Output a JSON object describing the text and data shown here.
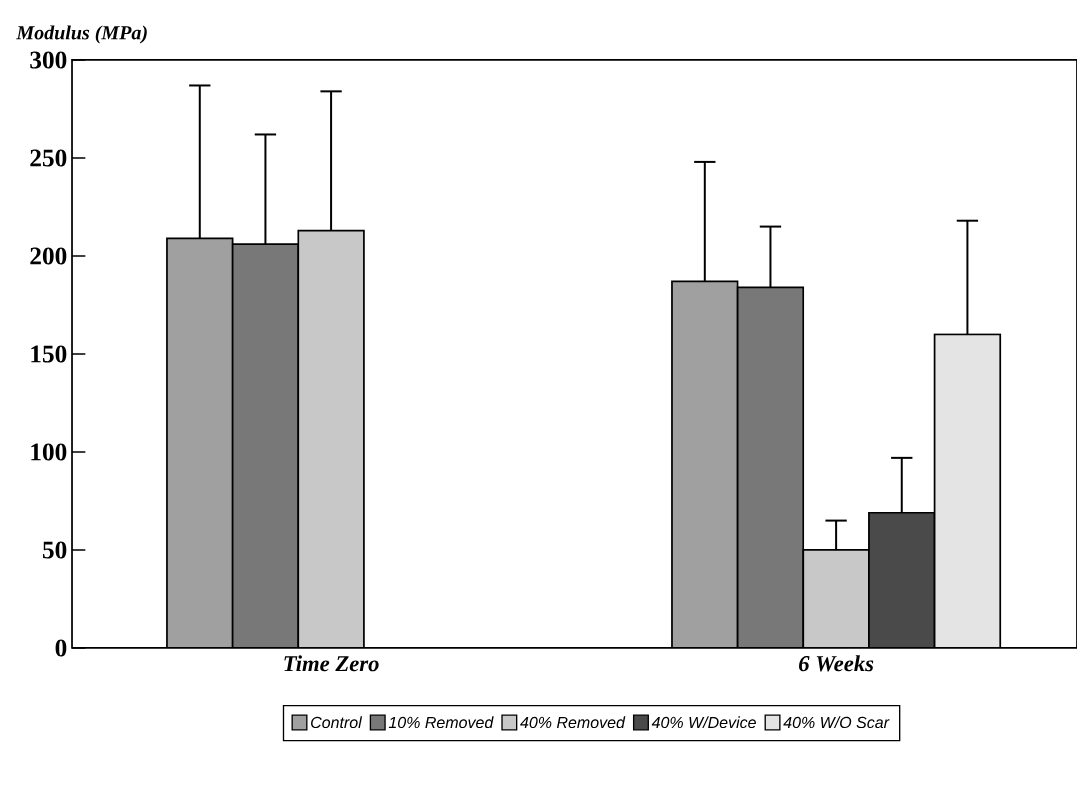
{
  "chart_data": {
    "type": "bar",
    "ylabel": "Modulus (MPa)",
    "categories": [
      "Time Zero",
      "6 Weeks"
    ],
    "series": [
      {
        "name": "Control",
        "color": "#a0a0a0",
        "values": [
          209,
          187
        ],
        "errors": [
          [
            209,
            287
          ],
          [
            187,
            248
          ]
        ]
      },
      {
        "name": "10% Removed",
        "color": "#787878",
        "values": [
          206,
          184
        ],
        "errors": [
          [
            206,
            262
          ],
          [
            184,
            215
          ]
        ]
      },
      {
        "name": "40% Removed",
        "color": "#c8c8c8",
        "values": [
          213,
          50
        ],
        "errors": [
          [
            213,
            284
          ],
          [
            50,
            65
          ]
        ]
      },
      {
        "name": "40% W/Device",
        "color": "#4a4a4a",
        "values": [
          null,
          69
        ],
        "errors": [
          null,
          [
            69,
            97
          ]
        ]
      },
      {
        "name": "40% W/O Scar",
        "color": "#e4e4e4",
        "values": [
          null,
          160
        ],
        "errors": [
          null,
          [
            160,
            218
          ]
        ]
      }
    ],
    "ylim": [
      0,
      300
    ],
    "yticks": [
      0,
      50,
      100,
      150,
      200,
      250,
      300
    ],
    "legend": "bottom"
  }
}
